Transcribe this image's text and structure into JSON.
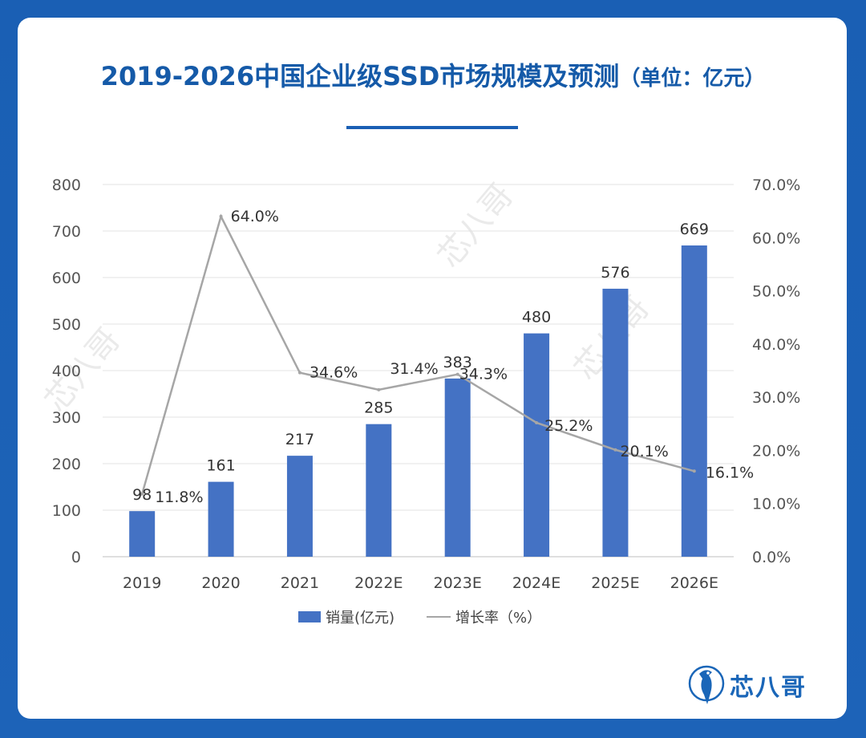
{
  "title": "2019-2026中国企业级SSD市场规模及预测",
  "title_unit": "（单位：亿元）",
  "brand": "芯八哥",
  "watermark": "芯八哥",
  "colors": {
    "bar": "#4472c4",
    "line": "#a6a6a6",
    "title": "#155aa8",
    "background": "#1a5fb4"
  },
  "chart_data": {
    "type": "bar",
    "categories": [
      "2019",
      "2020",
      "2021",
      "2022E",
      "2023E",
      "2024E",
      "2025E",
      "2026E"
    ],
    "series": [
      {
        "name": "销量(亿元)",
        "type": "bar",
        "axis": "left",
        "values": [
          98,
          161,
          217,
          285,
          383,
          480,
          576,
          669
        ],
        "labels": [
          "98",
          "161",
          "217",
          "285",
          "383",
          "480",
          "576",
          "669"
        ]
      },
      {
        "name": "增长率（%）",
        "type": "line",
        "axis": "right",
        "values": [
          11.8,
          64.0,
          34.6,
          31.4,
          34.3,
          25.2,
          20.1,
          16.1
        ],
        "labels": [
          "11.8%",
          "64.0%",
          "34.6%",
          "31.4%",
          "34.3%",
          "25.2%",
          "20.1%",
          "16.1%"
        ]
      }
    ],
    "y_left": {
      "min": 0,
      "max": 800,
      "ticks": [
        "0",
        "100",
        "200",
        "300",
        "400",
        "500",
        "600",
        "700",
        "800"
      ]
    },
    "y_right": {
      "min": 0,
      "max": 70,
      "ticks": [
        "0.0%",
        "10.0%",
        "20.0%",
        "30.0%",
        "40.0%",
        "50.0%",
        "60.0%",
        "70.0%"
      ]
    },
    "grid": true,
    "legend": "bottom"
  }
}
